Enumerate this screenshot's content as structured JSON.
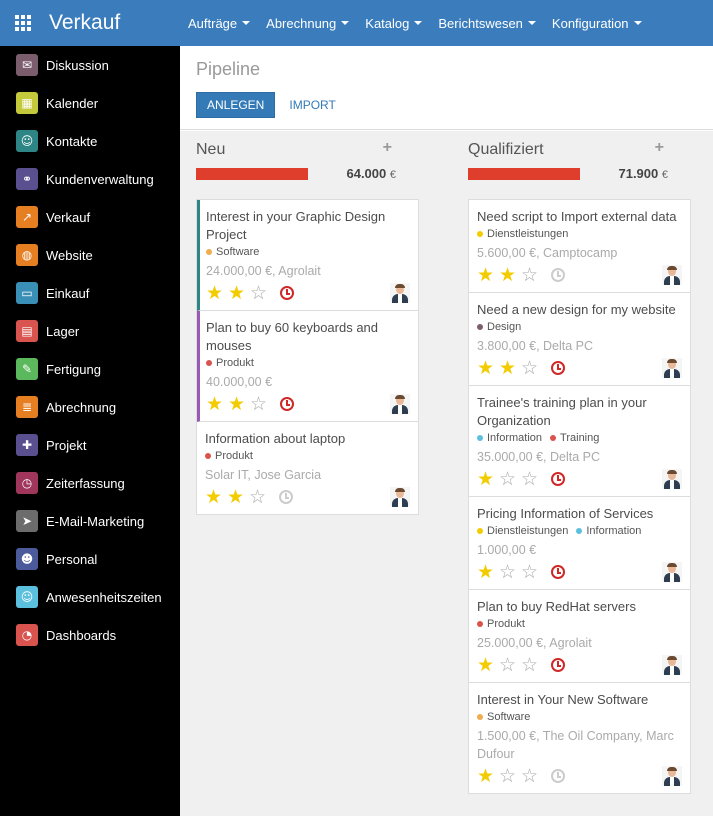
{
  "app": {
    "title": "Verkauf"
  },
  "menu": [
    "Aufträge",
    "Abrechnung",
    "Katalog",
    "Berichtswesen",
    "Konfiguration"
  ],
  "sidebar": [
    {
      "label": "Diskussion",
      "icon": "chat-icon",
      "color": "#7b5d6e",
      "glyph": "✉"
    },
    {
      "label": "Kalender",
      "icon": "calendar-icon",
      "color": "#c4c93b",
      "glyph": "▦"
    },
    {
      "label": "Kontakte",
      "icon": "contacts-icon",
      "color": "#2e8585",
      "glyph": "☺"
    },
    {
      "label": "Kundenverwaltung",
      "icon": "handshake-icon",
      "color": "#5a4f8f",
      "glyph": "⚭"
    },
    {
      "label": "Verkauf",
      "icon": "sales-chart-icon",
      "color": "#e67e22",
      "glyph": "↗"
    },
    {
      "label": "Website",
      "icon": "globe-icon",
      "color": "#e67e22",
      "glyph": "◍"
    },
    {
      "label": "Einkauf",
      "icon": "credit-card-icon",
      "color": "#3a8fb7",
      "glyph": "▭"
    },
    {
      "label": "Lager",
      "icon": "warehouse-icon",
      "color": "#d9534f",
      "glyph": "▤"
    },
    {
      "label": "Fertigung",
      "icon": "wrench-icon",
      "color": "#5cb85c",
      "glyph": "✎"
    },
    {
      "label": "Abrechnung",
      "icon": "invoice-icon",
      "color": "#e67e22",
      "glyph": "≣"
    },
    {
      "label": "Projekt",
      "icon": "puzzle-icon",
      "color": "#5a4f8f",
      "glyph": "✚"
    },
    {
      "label": "Zeiterfassung",
      "icon": "clock-icon",
      "color": "#a0365b",
      "glyph": "◷"
    },
    {
      "label": "E-Mail-Marketing",
      "icon": "paper-plane-icon",
      "color": "#6c6c6c",
      "glyph": "➤"
    },
    {
      "label": "Personal",
      "icon": "people-icon",
      "color": "#4a5a9a",
      "glyph": "☻"
    },
    {
      "label": "Anwesenheitszeiten",
      "icon": "user-check-icon",
      "color": "#5bc0de",
      "glyph": "☺"
    },
    {
      "label": "Dashboards",
      "icon": "dashboard-gauge-icon",
      "color": "#d9534f",
      "glyph": "◔"
    }
  ],
  "control_panel": {
    "breadcrumb": "Pipeline",
    "create_label": "ANLEGEN",
    "import_label": "IMPORT"
  },
  "columns": [
    {
      "title": "Neu",
      "add": "+",
      "total": "64.000",
      "currency": "€",
      "cards": [
        {
          "title": "Interest in your Graphic Design Project",
          "tags": [
            {
              "label": "Software",
              "color": "#f0ad4e"
            }
          ],
          "sub": "24.000,00 €, Agrolait",
          "stars": 2,
          "activity": "overdue",
          "accent": "#2e8585"
        },
        {
          "title": "Plan to buy 60 keyboards and mouses",
          "tags": [
            {
              "label": "Produkt",
              "color": "#d9534f"
            }
          ],
          "sub": "40.000,00 €",
          "stars": 2,
          "activity": "overdue",
          "accent": "#9b59b6"
        },
        {
          "title": "Information about laptop",
          "tags": [
            {
              "label": "Produkt",
              "color": "#d9534f"
            }
          ],
          "sub": "Solar IT, Jose Garcia",
          "stars": 2,
          "activity": "none",
          "accent": ""
        }
      ]
    },
    {
      "title": "Qualifiziert",
      "add": "+",
      "total": "71.900",
      "currency": "€",
      "cards": [
        {
          "title": "Need script to Import external data",
          "tags": [
            {
              "label": "Dienstleistungen",
              "color": "#f3cc00"
            }
          ],
          "sub": "5.600,00 €, Camptocamp",
          "stars": 2,
          "activity": "none",
          "accent": ""
        },
        {
          "title": "Need a new design for my website",
          "tags": [
            {
              "label": "Design",
              "color": "#7b5d6e"
            }
          ],
          "sub": "3.800,00 €, Delta PC",
          "stars": 2,
          "activity": "overdue",
          "accent": ""
        },
        {
          "title": "Trainee's training plan in your Organization",
          "tags": [
            {
              "label": "Information",
              "color": "#5bc0de"
            },
            {
              "label": "Training",
              "color": "#d9534f"
            }
          ],
          "sub": "35.000,00 €, Delta PC",
          "stars": 1,
          "activity": "overdue",
          "accent": ""
        },
        {
          "title": "Pricing Information of Services",
          "tags": [
            {
              "label": "Dienstleistungen",
              "color": "#f3cc00"
            },
            {
              "label": "Information",
              "color": "#5bc0de"
            }
          ],
          "sub": "1.000,00 €",
          "stars": 1,
          "activity": "overdue",
          "accent": ""
        },
        {
          "title": "Plan to buy RedHat servers",
          "tags": [
            {
              "label": "Produkt",
              "color": "#d9534f"
            }
          ],
          "sub": "25.000,00 €, Agrolait",
          "stars": 1,
          "activity": "overdue",
          "accent": ""
        },
        {
          "title": "Interest in Your New Software",
          "tags": [
            {
              "label": "Software",
              "color": "#f0ad4e"
            }
          ],
          "sub": "1.500,00 €, The Oil Company, Marc Dufour",
          "stars": 1,
          "activity": "none",
          "accent": ""
        }
      ]
    }
  ]
}
